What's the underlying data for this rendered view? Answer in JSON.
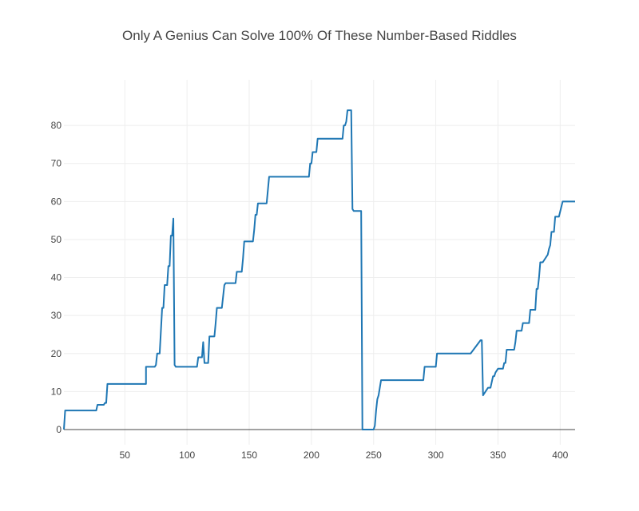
{
  "chart_data": {
    "type": "line",
    "title": "Only A Genius Can Solve 100% Of These Number-Based Riddles",
    "xlabel": "",
    "ylabel": "",
    "xlim": [
      1,
      412
    ],
    "ylim": [
      -4,
      92
    ],
    "xticks": [
      50,
      100,
      150,
      200,
      250,
      300,
      350,
      400
    ],
    "yticks": [
      0,
      10,
      20,
      30,
      40,
      50,
      60,
      70,
      80
    ],
    "grid": true,
    "legend": "none",
    "series": [
      {
        "color": "#1f77b4",
        "x": [
          1,
          2,
          27,
          28,
          32,
          33,
          34,
          35,
          36,
          66,
          67,
          67,
          74,
          75,
          76,
          77,
          78,
          79,
          80,
          81,
          82,
          84,
          85,
          86,
          87,
          88,
          89,
          90,
          91,
          108,
          109,
          112,
          113,
          114,
          115,
          117,
          118,
          121,
          122,
          123,
          124,
          128,
          129,
          130,
          131,
          139,
          140,
          144,
          145,
          146,
          147,
          153,
          154,
          155,
          156,
          157,
          158,
          164,
          165,
          166,
          167,
          198,
          199,
          200,
          201,
          202,
          204,
          205,
          206,
          225,
          226,
          227,
          228,
          229,
          230,
          232,
          233,
          234,
          235,
          236,
          237,
          240,
          241,
          242,
          243,
          250,
          251,
          252,
          253,
          254,
          255,
          256,
          257,
          290,
          291,
          299,
          300,
          301,
          327,
          328,
          336,
          337,
          338,
          342,
          343,
          344,
          346,
          347,
          348,
          350,
          351,
          354,
          355,
          356,
          357,
          361,
          362,
          363,
          364,
          365,
          366,
          369,
          370,
          375,
          376,
          380,
          381,
          382,
          383,
          384,
          385,
          386,
          390,
          391,
          392,
          393,
          394,
          395,
          396,
          398,
          399,
          402,
          403,
          405,
          406,
          412
        ],
        "y": [
          0,
          5,
          5,
          6.5,
          6.5,
          6.5,
          7,
          7,
          12,
          12,
          12,
          16.5,
          16.5,
          17,
          20,
          20,
          20,
          26,
          32,
          32,
          38,
          38,
          43,
          43,
          51,
          51,
          55.5,
          17,
          16.5,
          16.5,
          19,
          19,
          23,
          17.5,
          17.5,
          17.5,
          24.5,
          24.5,
          24.5,
          28,
          32,
          32,
          35,
          38,
          38.5,
          38.5,
          41.5,
          41.5,
          45,
          49.5,
          49.5,
          49.5,
          52.5,
          56.5,
          56.5,
          59.5,
          59.5,
          59.5,
          63,
          66.5,
          66.5,
          66.5,
          70,
          70,
          73,
          73,
          73,
          76.5,
          76.5,
          76.5,
          80,
          80,
          81,
          84,
          84,
          84,
          58,
          57.5,
          57.5,
          57.5,
          57.5,
          57.5,
          0,
          0,
          0,
          0,
          1,
          5,
          8,
          9,
          11,
          13,
          13,
          13,
          16.5,
          16.5,
          16.5,
          20,
          20,
          20,
          23.5,
          23.5,
          9,
          11,
          11,
          11,
          14,
          14,
          15,
          16,
          16,
          16,
          17.5,
          17.5,
          21,
          21,
          21,
          21,
          23,
          26,
          26,
          26,
          28,
          28,
          31.5,
          31.5,
          37,
          37,
          40,
          44,
          44,
          44,
          46,
          47.5,
          48.5,
          52,
          52,
          52,
          56,
          56,
          56,
          60,
          60,
          60,
          60,
          60
        ]
      }
    ]
  }
}
